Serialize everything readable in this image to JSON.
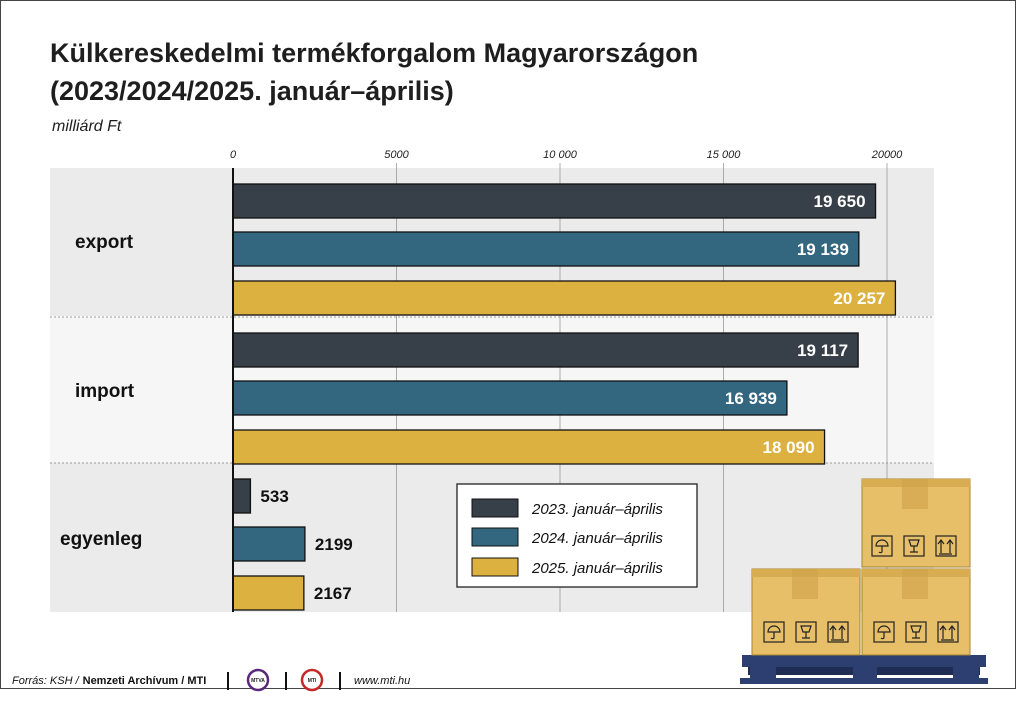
{
  "chart_data": {
    "type": "bar",
    "orientation": "horizontal",
    "title_line1": "Külkereskedelmi termékforgalom Magyarországon",
    "title_line2": "(2023/2024/2025. január–április)",
    "unit": "milliárd Ft",
    "xlim": [
      0,
      21000
    ],
    "ticks": [
      {
        "value": 0,
        "label": "0"
      },
      {
        "value": 5000,
        "label": "5000"
      },
      {
        "value": 10000,
        "label": "10 000"
      },
      {
        "value": 15000,
        "label": "15 000"
      },
      {
        "value": 20000,
        "label": "20000"
      }
    ],
    "categories": [
      "export",
      "import",
      "egyenleg"
    ],
    "series": [
      {
        "name": "2023. január–április",
        "color": "#373f48",
        "values": [
          19650,
          19117,
          533
        ],
        "labels": [
          "19 650",
          "19 117",
          "533"
        ]
      },
      {
        "name": "2024. január–április",
        "color": "#33677f",
        "values": [
          19139,
          16939,
          2199
        ],
        "labels": [
          "19 139",
          "16 939",
          "2199"
        ]
      },
      {
        "name": "2025. január–április",
        "color": "#dcb13f",
        "values": [
          20257,
          18090,
          2167
        ],
        "labels": [
          "20 257",
          "18 090",
          "2167"
        ]
      }
    ],
    "legend_position": "bottom-center",
    "grid": true
  },
  "footer": {
    "source_prefix": "Forrás: KSH /",
    "source_bold": "Nemzeti Archívum / MTI",
    "logo1_text": "MTVA",
    "logo2_text": "MTI",
    "website": "www.mti.hu"
  },
  "colors": {
    "band_light": "#ebebeb",
    "band_dark": "#f6f6f6",
    "box_face": "#e6bf68",
    "box_side": "#d8ac50",
    "pallet": "#2c3f70"
  },
  "decoration": {
    "icon": "cardboard-boxes-on-pallet-icon"
  }
}
